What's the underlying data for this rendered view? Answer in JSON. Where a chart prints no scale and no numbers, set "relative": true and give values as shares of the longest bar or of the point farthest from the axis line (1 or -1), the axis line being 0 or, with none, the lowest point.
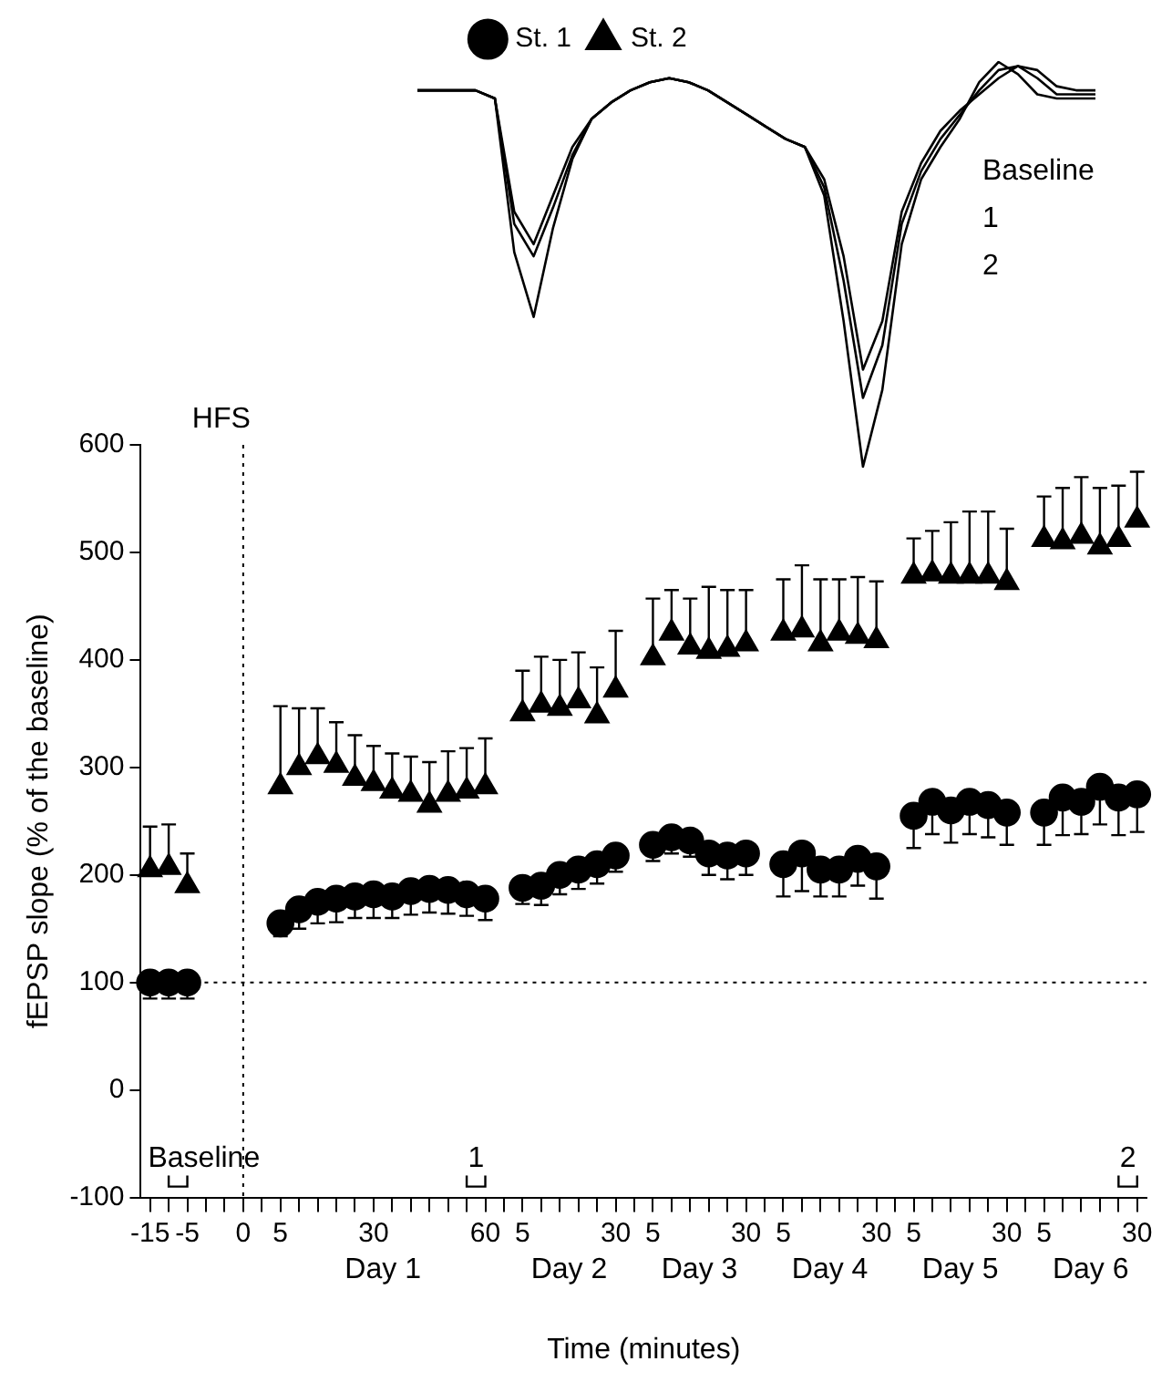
{
  "chart_data": [
    {
      "type": "line",
      "relative": true,
      "categories": [
        null,
        null,
        null,
        null,
        null,
        null,
        null,
        null,
        null,
        null,
        null,
        null,
        null,
        null,
        null,
        null,
        null,
        null,
        null,
        null,
        null,
        null,
        null,
        null,
        null,
        null,
        null,
        null,
        null,
        null,
        null,
        null,
        null,
        null,
        null,
        null
      ],
      "series": [
        {
          "name": "Baseline",
          "color": "#000000",
          "values": [
            0.93,
            0.93,
            0.93,
            0.93,
            0.91,
            0.63,
            0.55,
            0.67,
            0.79,
            0.86,
            0.9,
            0.93,
            0.95,
            0.96,
            0.95,
            0.93,
            0.9,
            0.87,
            0.84,
            0.81,
            0.79,
            0.71,
            0.52,
            0.24,
            0.36,
            0.63,
            0.75,
            0.83,
            0.88,
            0.92,
            0.96,
            0.99,
            0.98,
            0.94,
            0.93,
            0.93
          ]
        },
        {
          "name": "1",
          "color": "#000000",
          "values": [
            0.93,
            0.93,
            0.93,
            0.93,
            0.91,
            0.6,
            0.52,
            0.64,
            0.77,
            0.86,
            0.9,
            0.93,
            0.95,
            0.96,
            0.95,
            0.93,
            0.9,
            0.87,
            0.84,
            0.81,
            0.79,
            0.69,
            0.46,
            0.17,
            0.3,
            0.6,
            0.73,
            0.81,
            0.87,
            0.93,
            0.98,
            0.99,
            0.96,
            0.92,
            0.92,
            0.92
          ]
        },
        {
          "name": "2",
          "color": "#000000",
          "values": [
            0.93,
            0.93,
            0.93,
            0.93,
            0.91,
            0.53,
            0.37,
            0.59,
            0.76,
            0.86,
            0.9,
            0.93,
            0.95,
            0.96,
            0.95,
            0.93,
            0.9,
            0.87,
            0.84,
            0.81,
            0.79,
            0.67,
            0.36,
            0,
            0.19,
            0.55,
            0.71,
            0.79,
            0.86,
            0.95,
            1,
            0.97,
            0.92,
            0.91,
            0.91,
            0.91
          ]
        }
      ]
    },
    {
      "type": "scatter",
      "ylabel": "fEPSP slope (% of the baseline)",
      "xlabel": "Time (minutes)",
      "categories": [
        "-15",
        null,
        "-5",
        null,
        null,
        "0",
        null,
        "5",
        null,
        null,
        null,
        null,
        "30",
        null,
        null,
        null,
        null,
        null,
        "60",
        null,
        "5",
        null,
        null,
        null,
        null,
        "30",
        null,
        "5",
        null,
        null,
        null,
        null,
        "30",
        null,
        "5",
        null,
        null,
        null,
        null,
        "30",
        null,
        "5",
        null,
        null,
        null,
        null,
        "30",
        null,
        "5",
        null,
        null,
        null,
        null,
        "30"
      ],
      "series": [
        {
          "name": "St. 1",
          "color": "#000000",
          "marker": "circle",
          "values": [
            100,
            100,
            100,
            null,
            null,
            null,
            null,
            155,
            168,
            175,
            178,
            180,
            182,
            180,
            185,
            187,
            186,
            182,
            178,
            null,
            188,
            190,
            200,
            205,
            210,
            218,
            null,
            228,
            235,
            232,
            220,
            218,
            220,
            null,
            210,
            220,
            205,
            205,
            215,
            208,
            null,
            255,
            268,
            260,
            268,
            265,
            258,
            null,
            258,
            272,
            268,
            282,
            272,
            275
          ],
          "errors": [
            [
              85,
              100
            ],
            [
              85,
              100
            ],
            [
              85,
              100
            ],
            null,
            null,
            null,
            null,
            [
              143,
              155
            ],
            [
              150,
              168
            ],
            [
              155,
              175
            ],
            [
              156,
              178
            ],
            [
              160,
              180
            ],
            [
              160,
              182
            ],
            [
              160,
              180
            ],
            [
              163,
              185
            ],
            [
              165,
              187
            ],
            [
              164,
              186
            ],
            [
              162,
              182
            ],
            [
              158,
              178
            ],
            null,
            [
              173,
              188
            ],
            [
              172,
              190
            ],
            [
              182,
              200
            ],
            [
              187,
              205
            ],
            [
              192,
              210
            ],
            [
              203,
              218
            ],
            null,
            [
              213,
              228
            ],
            [
              220,
              235
            ],
            [
              217,
              232
            ],
            [
              200,
              220
            ],
            [
              196,
              218
            ],
            [
              200,
              220
            ],
            null,
            [
              180,
              210
            ],
            [
              185,
              220
            ],
            [
              180,
              205
            ],
            [
              180,
              205
            ],
            [
              190,
              215
            ],
            [
              178,
              208
            ],
            null,
            [
              225,
              255
            ],
            [
              238,
              268
            ],
            [
              230,
              260
            ],
            [
              238,
              268
            ],
            [
              235,
              265
            ],
            [
              228,
              258
            ],
            null,
            [
              228,
              258
            ],
            [
              237,
              272
            ],
            [
              238,
              268
            ],
            [
              247,
              282
            ],
            [
              237,
              272
            ],
            [
              240,
              275
            ]
          ]
        },
        {
          "name": "St. 2",
          "color": "#000000",
          "marker": "triangle",
          "values": [
            205,
            207,
            190,
            null,
            null,
            null,
            null,
            282,
            300,
            310,
            302,
            290,
            285,
            278,
            275,
            265,
            275,
            278,
            282,
            null,
            350,
            358,
            355,
            362,
            348,
            372,
            null,
            402,
            425,
            412,
            408,
            410,
            415,
            null,
            425,
            428,
            415,
            425,
            422,
            418,
            null,
            478,
            480,
            478,
            478,
            478,
            472,
            null,
            512,
            510,
            515,
            505,
            512,
            530
          ],
          "errors": [
            [
              205,
              245
            ],
            [
              207,
              247
            ],
            [
              190,
              220
            ],
            null,
            null,
            null,
            null,
            [
              282,
              357
            ],
            [
              300,
              355
            ],
            [
              310,
              355
            ],
            [
              302,
              342
            ],
            [
              290,
              330
            ],
            [
              285,
              320
            ],
            [
              278,
              313
            ],
            [
              275,
              310
            ],
            [
              265,
              305
            ],
            [
              275,
              315
            ],
            [
              278,
              318
            ],
            [
              282,
              327
            ],
            null,
            [
              350,
              390
            ],
            [
              358,
              403
            ],
            [
              355,
              400
            ],
            [
              362,
              407
            ],
            [
              348,
              393
            ],
            [
              372,
              427
            ],
            null,
            [
              402,
              457
            ],
            [
              425,
              465
            ],
            [
              412,
              457
            ],
            [
              408,
              468
            ],
            [
              410,
              465
            ],
            [
              415,
              465
            ],
            null,
            [
              425,
              475
            ],
            [
              428,
              488
            ],
            [
              415,
              475
            ],
            [
              425,
              475
            ],
            [
              422,
              477
            ],
            [
              418,
              473
            ],
            null,
            [
              478,
              513
            ],
            [
              480,
              520
            ],
            [
              478,
              528
            ],
            [
              478,
              538
            ],
            [
              478,
              538
            ],
            [
              472,
              522
            ],
            null,
            [
              512,
              552
            ],
            [
              510,
              560
            ],
            [
              515,
              570
            ],
            [
              505,
              560
            ],
            [
              512,
              562
            ],
            [
              530,
              575
            ]
          ]
        }
      ],
      "ylim": [
        -100,
        600
      ],
      "yticks": [
        -100,
        0,
        100,
        200,
        300,
        400,
        500,
        600
      ],
      "ref_lines": [
        {
          "axis": "y",
          "value": 100,
          "line_style": "dotted"
        },
        {
          "axis": "x",
          "value": "0",
          "label": "HFS",
          "line_style": "dotted"
        }
      ],
      "legend": "top",
      "grid": false,
      "annotations": [
        "Baseline",
        "1",
        "2",
        "Day 1",
        "Day 2",
        "Day 3",
        "Day 4",
        "Day 5",
        "Day 6"
      ]
    }
  ]
}
